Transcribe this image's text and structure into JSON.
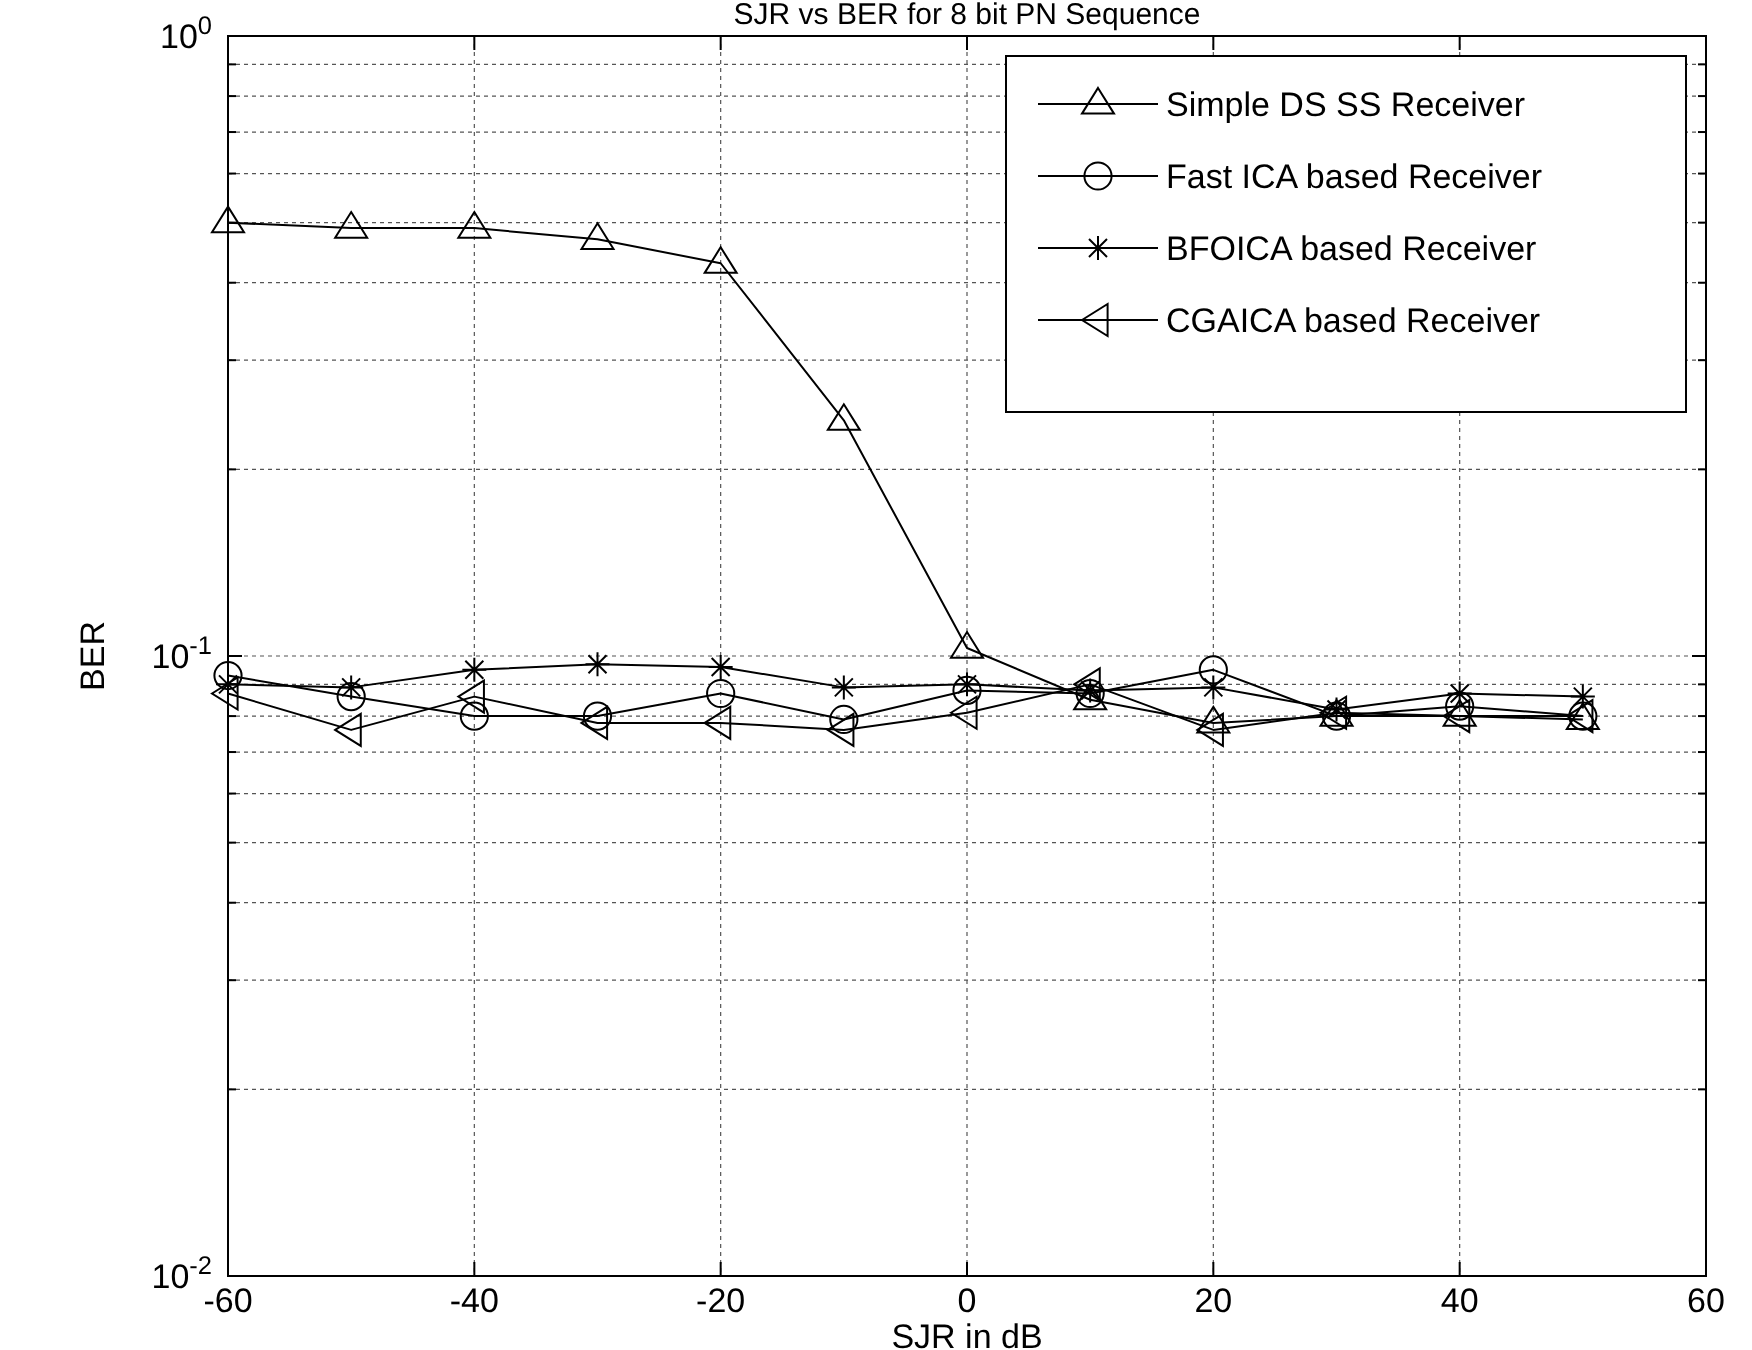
{
  "chart_data": {
    "type": "line",
    "title": "SJR vs BER for 8 bit PN Sequence",
    "xlabel": "SJR in dB",
    "ylabel": "BER",
    "x": [
      -60,
      -50,
      -40,
      -30,
      -20,
      -10,
      0,
      10,
      20,
      30,
      40,
      50
    ],
    "series": [
      {
        "name": "Simple DS SS Receiver",
        "color": "#000000",
        "marker": "triangle",
        "values": [
          0.5,
          0.49,
          0.49,
          0.47,
          0.43,
          0.24,
          0.103,
          0.085,
          0.078,
          0.08,
          0.08,
          0.079
        ]
      },
      {
        "name": "Fast ICA based Receiver",
        "color": "#000000",
        "marker": "circle",
        "values": [
          0.093,
          0.086,
          0.08,
          0.08,
          0.087,
          0.079,
          0.088,
          0.087,
          0.095,
          0.08,
          0.083,
          0.08
        ]
      },
      {
        "name": "BFOICA based Receiver",
        "color": "#000000",
        "marker": "cross",
        "values": [
          0.09,
          0.089,
          0.095,
          0.097,
          0.096,
          0.089,
          0.09,
          0.088,
          0.089,
          0.082,
          0.087,
          0.086
        ]
      },
      {
        "name": "CGAICA based Receiver",
        "color": "#000000",
        "marker": "triangle-left",
        "values": [
          0.087,
          0.076,
          0.086,
          0.078,
          0.078,
          0.076,
          0.081,
          0.09,
          0.076,
          0.081,
          0.08,
          0.08
        ]
      }
    ],
    "xlim": [
      -60,
      60
    ],
    "xticks": [
      -60,
      -40,
      -20,
      0,
      20,
      40,
      60
    ],
    "log": true,
    "ylim": [
      0.01,
      1
    ],
    "yticks": [
      {
        "value": 0.01,
        "label": "10$^{-2}$"
      },
      {
        "value": 0.02,
        "label": null
      },
      {
        "value": 0.03,
        "label": null
      },
      {
        "value": 0.04,
        "label": null
      },
      {
        "value": 0.05,
        "label": null
      },
      {
        "value": 0.06,
        "label": null
      },
      {
        "value": 0.07,
        "label": null
      },
      {
        "value": 0.08,
        "label": null
      },
      {
        "value": 0.09,
        "label": null
      },
      {
        "value": 0.1,
        "label": "10$^{-1}$"
      },
      {
        "value": 0.2,
        "label": null
      },
      {
        "value": 0.3,
        "label": null
      },
      {
        "value": 0.4,
        "label": null
      },
      {
        "value": 0.5,
        "label": null
      },
      {
        "value": 0.6,
        "label": null
      },
      {
        "value": 0.7,
        "label": null
      },
      {
        "value": 0.8,
        "label": null
      },
      {
        "value": 0.9,
        "label": null
      },
      {
        "value": 1,
        "label": "10$^{0}$"
      }
    ],
    "grid": true,
    "legend": "top right",
    "line_style": "solid"
  }
}
